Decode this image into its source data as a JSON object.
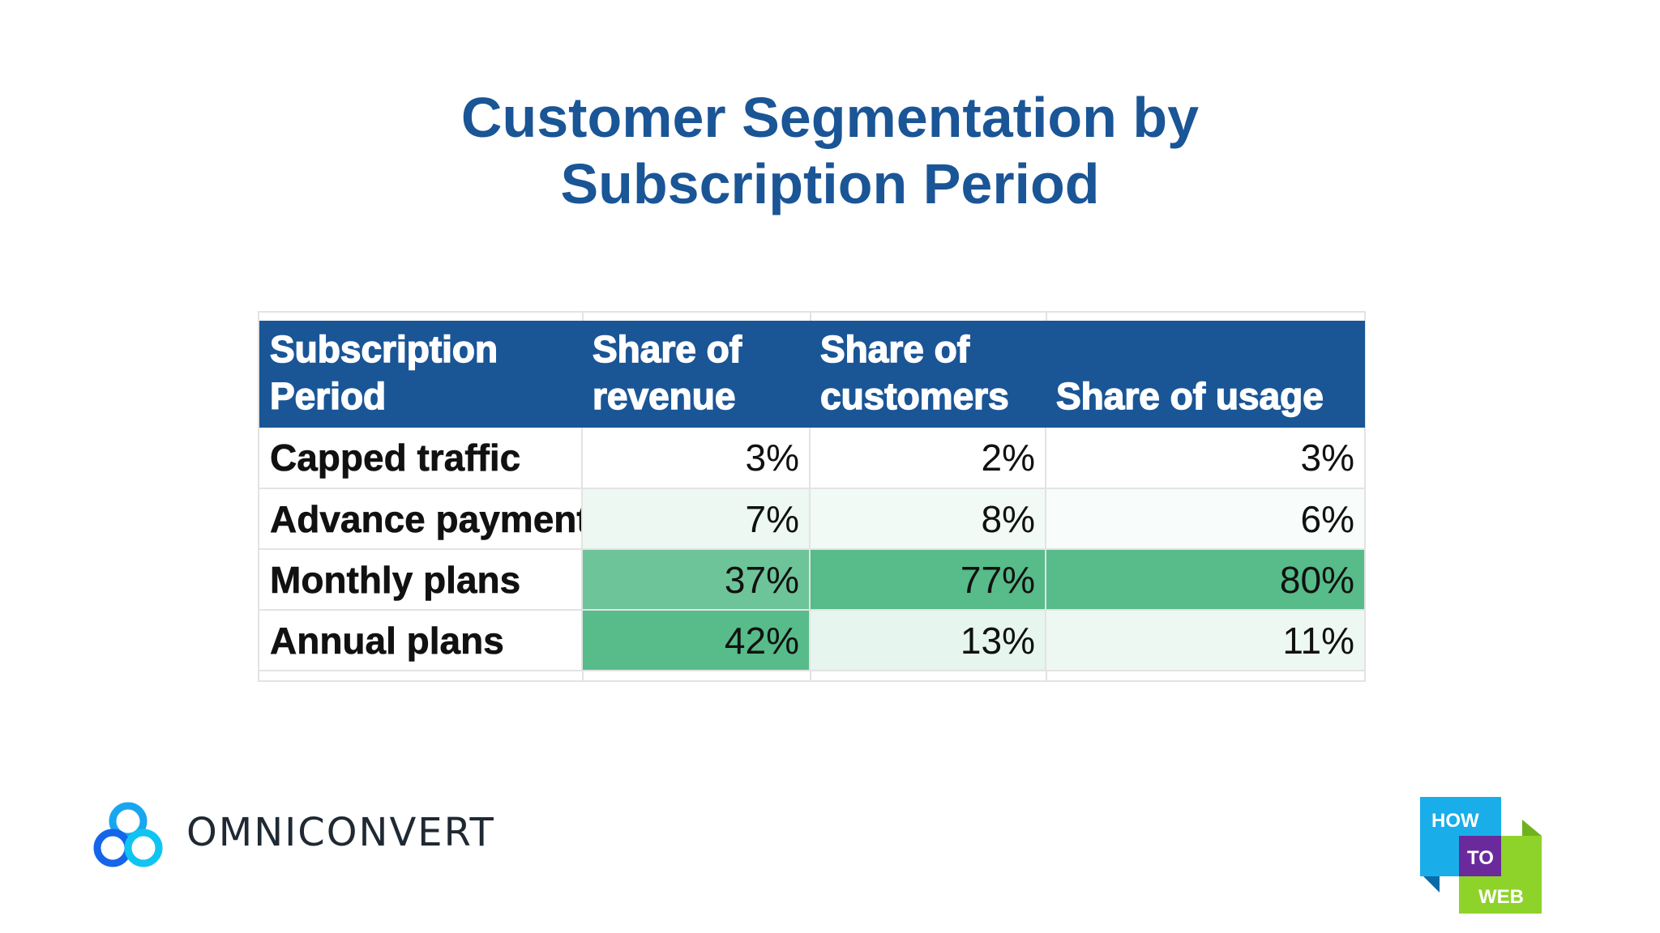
{
  "title": {
    "line1": "Customer Segmentation by",
    "line2": "Subscription Period"
  },
  "chart_data": {
    "type": "table",
    "columns": [
      "Subscription Period",
      "Share of revenue",
      "Share of customers",
      "Share of usage"
    ],
    "rows": [
      {
        "label": "Capped traffic",
        "values": [
          "3%",
          "2%",
          "3%"
        ]
      },
      {
        "label": "Advance payment",
        "values": [
          "7%",
          "8%",
          "6%"
        ]
      },
      {
        "label": "Monthly plans",
        "values": [
          "37%",
          "77%",
          "80%"
        ]
      },
      {
        "label": "Annual plans",
        "values": [
          "42%",
          "13%",
          "11%"
        ]
      }
    ],
    "numeric_values": [
      [
        3,
        2,
        3
      ],
      [
        7,
        8,
        6
      ],
      [
        37,
        77,
        80
      ],
      [
        42,
        13,
        11
      ]
    ],
    "color_scale": {
      "low": "#ffffff",
      "high": "#57bb8a"
    },
    "header_color": "#1a5596"
  },
  "logos": {
    "omniconvert": {
      "text": "OMNICONVERT",
      "icon": "three-circles-icon",
      "colors": [
        "#1565e8",
        "#19a6f0",
        "#10c4f2"
      ]
    },
    "howtoweb": {
      "icon": "howtoweb-logo-icon",
      "words": [
        "HOW",
        "TO",
        "WEB"
      ],
      "colors": {
        "how": "#19aeea",
        "to": "#6a2a9c",
        "web": "#8ed32a"
      }
    }
  }
}
